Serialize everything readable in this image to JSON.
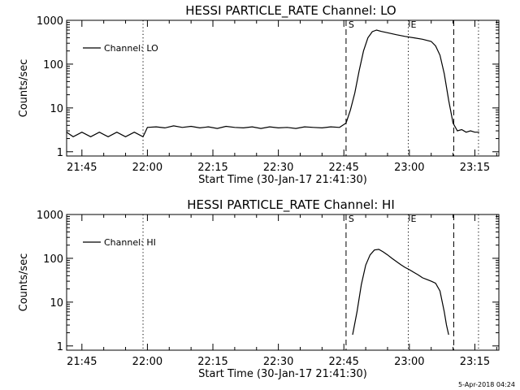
{
  "footer_timestamp": "5-Apr-2018 04:24",
  "chart_data": [
    {
      "type": "line",
      "title": "HESSI PARTICLE_RATE Channel: LO",
      "xlabel": "Start Time (30-Jan-17 21:41:30)",
      "ylabel": "Counts/sec",
      "yscale": "log",
      "xlim": [
        "21:41:30",
        "23:20:30"
      ],
      "ylim": [
        0.8,
        1000
      ],
      "x_ticks": [
        "21:45",
        "22:00",
        "22:15",
        "22:30",
        "22:45",
        "23:00",
        "23:15"
      ],
      "y_ticks": [
        "1",
        "10",
        "100",
        "1000"
      ],
      "legend": {
        "placement": "top-left",
        "entries": [
          "Channel: LO"
        ]
      },
      "vertical_markers": [
        {
          "time": "21:59:00",
          "style": "dotted",
          "label": ""
        },
        {
          "time": "22:45:30",
          "style": "dashed",
          "label": "S"
        },
        {
          "time": "22:59:45",
          "style": "dotted",
          "label": "E"
        },
        {
          "time": "23:10:10",
          "style": "dashed",
          "label": ""
        },
        {
          "time": "23:15:50",
          "style": "dotted",
          "label": ""
        }
      ],
      "series": [
        {
          "name": "Channel: LO",
          "x": [
            "21:41:30",
            "21:43:00",
            "21:45:00",
            "21:47:00",
            "21:49:00",
            "21:51:00",
            "21:53:00",
            "21:55:00",
            "21:57:00",
            "21:59:00",
            "21:59:30",
            "22:00:00",
            "22:02:00",
            "22:04:00",
            "22:06:00",
            "22:08:00",
            "22:10:00",
            "22:12:00",
            "22:14:00",
            "22:16:00",
            "22:18:00",
            "22:20:00",
            "22:22:00",
            "22:24:00",
            "22:26:00",
            "22:28:00",
            "22:30:00",
            "22:32:00",
            "22:34:00",
            "22:36:00",
            "22:38:00",
            "22:40:00",
            "22:42:00",
            "22:44:00",
            "22:45:30",
            "22:46:30",
            "22:47:30",
            "22:48:30",
            "22:49:30",
            "22:50:30",
            "22:51:30",
            "22:52:30",
            "22:53:30",
            "22:55:00",
            "22:57:00",
            "22:59:00",
            "23:01:00",
            "23:03:00",
            "23:05:00",
            "23:06:00",
            "23:07:00",
            "23:08:00",
            "23:09:00",
            "23:10:00",
            "23:11:00",
            "23:12:00",
            "23:13:00",
            "23:14:00",
            "23:15:00",
            "23:16:00"
          ],
          "y": [
            2.8,
            2.2,
            2.8,
            2.2,
            2.8,
            2.2,
            2.8,
            2.2,
            2.8,
            2.2,
            2.8,
            3.6,
            3.7,
            3.5,
            3.9,
            3.6,
            3.8,
            3.5,
            3.7,
            3.4,
            3.8,
            3.6,
            3.5,
            3.7,
            3.4,
            3.7,
            3.5,
            3.6,
            3.4,
            3.7,
            3.6,
            3.5,
            3.7,
            3.6,
            4.5,
            9,
            22,
            70,
            200,
            400,
            550,
            600,
            560,
            520,
            470,
            430,
            400,
            370,
            330,
            260,
            160,
            60,
            15,
            4.5,
            3,
            3.2,
            2.8,
            3,
            2.8,
            2.8
          ]
        }
      ]
    },
    {
      "type": "line",
      "title": "HESSI PARTICLE_RATE Channel: HI",
      "xlabel": "Start Time (30-Jan-17 21:41:30)",
      "ylabel": "Counts/sec",
      "yscale": "log",
      "xlim": [
        "21:41:30",
        "23:20:30"
      ],
      "ylim": [
        0.8,
        1000
      ],
      "x_ticks": [
        "21:45",
        "22:00",
        "22:15",
        "22:30",
        "22:45",
        "23:00",
        "23:15"
      ],
      "y_ticks": [
        "1",
        "10",
        "100",
        "1000"
      ],
      "legend": {
        "placement": "top-left",
        "entries": [
          "Channel: HI"
        ]
      },
      "vertical_markers": [
        {
          "time": "21:59:00",
          "style": "dotted",
          "label": ""
        },
        {
          "time": "22:45:30",
          "style": "dashed",
          "label": "S"
        },
        {
          "time": "22:59:45",
          "style": "dotted",
          "label": "E"
        },
        {
          "time": "23:10:10",
          "style": "dashed",
          "label": ""
        },
        {
          "time": "23:15:50",
          "style": "dotted",
          "label": ""
        }
      ],
      "series": [
        {
          "name": "Channel: HI",
          "x": [
            "22:47:00",
            "22:48:00",
            "22:49:00",
            "22:50:00",
            "22:51:00",
            "22:52:00",
            "22:53:00",
            "22:54:00",
            "22:55:00",
            "22:56:00",
            "22:57:00",
            "22:58:00",
            "22:59:00",
            "23:00:00",
            "23:01:00",
            "23:02:00",
            "23:03:00",
            "23:04:00",
            "23:05:00",
            "23:06:00",
            "23:07:00",
            "23:08:00",
            "23:08:30",
            "23:09:00"
          ],
          "y": [
            1.8,
            6,
            25,
            70,
            120,
            155,
            160,
            140,
            120,
            100,
            85,
            72,
            62,
            55,
            48,
            42,
            36,
            33,
            30,
            27,
            18,
            6,
            3,
            1.8
          ]
        }
      ]
    }
  ]
}
